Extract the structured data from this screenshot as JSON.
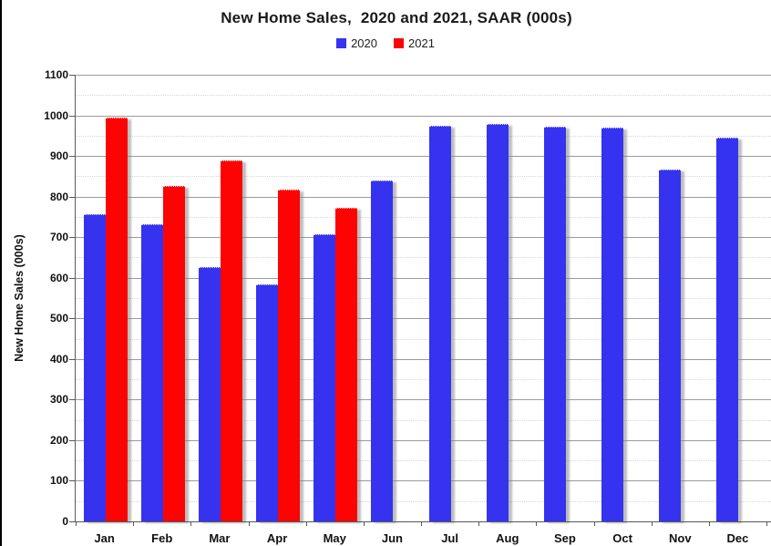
{
  "title": "New Home Sales,  2020 and 2021, SAAR (000s)",
  "legend": {
    "items": [
      {
        "label": "2020",
        "color": "#3533f0"
      },
      {
        "label": "2021",
        "color": "#fc0404"
      }
    ]
  },
  "colors": {
    "series_2020": "#3533f0",
    "series_2021": "#fc0404",
    "major_gridline": "#9b9b9b",
    "minor_gridline": "#d6d6d6",
    "axis": "#595959"
  },
  "chart_data": {
    "type": "bar",
    "title": "New Home Sales,  2020 and 2021, SAAR (000s)",
    "categories": [
      "Jan",
      "Feb",
      "Mar",
      "Apr",
      "May",
      "Jun",
      "Jul",
      "Aug",
      "Sep",
      "Oct",
      "Nov",
      "Dec"
    ],
    "series": [
      {
        "name": "2020",
        "color": "#3533f0",
        "values": [
          755,
          730,
          623,
          582,
          704,
          838,
          971,
          977,
          970,
          967,
          865,
          943
        ]
      },
      {
        "name": "2021",
        "color": "#fc0404",
        "values": [
          993,
          823,
          886,
          816,
          769,
          null,
          null,
          null,
          null,
          null,
          null,
          null
        ]
      }
    ],
    "xlabel": "",
    "ylabel": "New Home Sales (000s)",
    "ylim": [
      0,
      1100
    ],
    "ytick_step": 100,
    "minor_gridline_step": 50,
    "grid": true,
    "legend_position": "top-center"
  }
}
